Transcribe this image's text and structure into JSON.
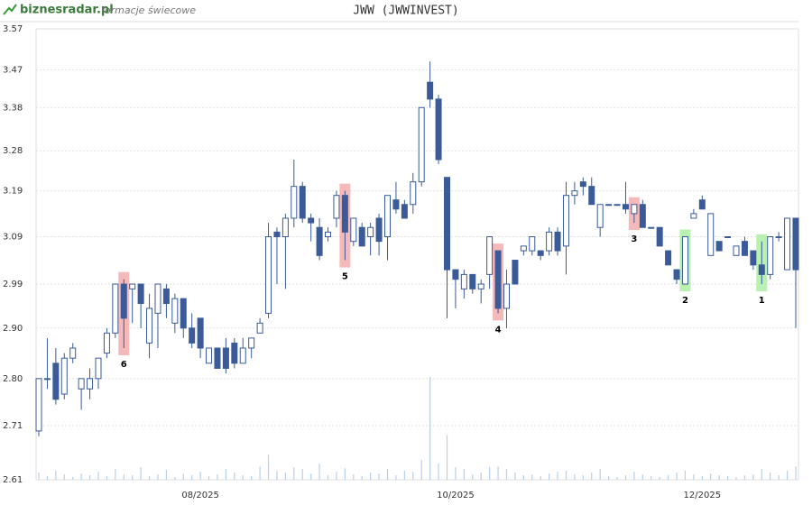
{
  "chart_data": {
    "type": "candlestick",
    "brand": "biznesradar.pl",
    "subtitle": "formacje świecowe",
    "title": "JWW (JWWINVEST)",
    "log": true,
    "grid": true,
    "up_color": "#ffffff",
    "down_color": "#3a5a98",
    "volume_color": "#b8cfe8",
    "ylim": [
      2.61,
      3.57
    ],
    "yticks": [
      {
        "value": 2.61,
        "label": "2.61"
      },
      {
        "value": 2.71,
        "label": "2.71"
      },
      {
        "value": 2.8,
        "label": "2.80"
      },
      {
        "value": 2.9,
        "label": "2.90"
      },
      2.99,
      3.09,
      3.19,
      3.28,
      3.38,
      3.47,
      3.57
    ],
    "categories": [
      null,
      null,
      null,
      null,
      null,
      null,
      null,
      null,
      null,
      null,
      null,
      null,
      null,
      null,
      null,
      null,
      null,
      null,
      null,
      "08/2025",
      null,
      null,
      null,
      null,
      null,
      null,
      null,
      null,
      null,
      null,
      null,
      null,
      null,
      null,
      null,
      null,
      null,
      null,
      null,
      null,
      null,
      null,
      null,
      null,
      null,
      null,
      null,
      null,
      null,
      "10/2025",
      null,
      null,
      null,
      null,
      null,
      null,
      null,
      null,
      null,
      null,
      null,
      null,
      null,
      null,
      null,
      null,
      null,
      null,
      null,
      null,
      null,
      null,
      null,
      null,
      null,
      null,
      null,
      null,
      "12/2025",
      null,
      null,
      null,
      null,
      null,
      null,
      null,
      null,
      null,
      null,
      null
    ],
    "ohlc": [
      [
        2.7,
        2.8,
        2.69,
        2.8
      ],
      [
        2.8,
        2.88,
        2.78,
        2.8
      ],
      [
        2.83,
        2.86,
        2.75,
        2.76
      ],
      [
        2.77,
        2.85,
        2.76,
        2.84
      ],
      [
        2.84,
        2.87,
        2.83,
        2.86
      ],
      [
        2.78,
        2.8,
        2.74,
        2.8
      ],
      [
        2.78,
        2.82,
        2.76,
        2.8
      ],
      [
        2.8,
        2.84,
        2.78,
        2.84
      ],
      [
        2.85,
        2.9,
        2.84,
        2.89
      ],
      [
        2.89,
        2.99,
        2.88,
        2.99
      ],
      [
        2.99,
        3.0,
        2.86,
        2.92
      ],
      [
        2.98,
        2.99,
        2.91,
        2.99
      ],
      [
        2.99,
        2.99,
        2.9,
        2.95
      ],
      [
        2.87,
        2.97,
        2.84,
        2.94
      ],
      [
        2.93,
        2.99,
        2.86,
        2.99
      ],
      [
        2.98,
        2.99,
        2.92,
        2.95
      ],
      [
        2.91,
        2.97,
        2.89,
        2.96
      ],
      [
        2.96,
        2.96,
        2.88,
        2.9
      ],
      [
        2.9,
        2.93,
        2.86,
        2.87
      ],
      [
        2.92,
        2.92,
        2.84,
        2.86
      ],
      [
        2.83,
        2.86,
        2.83,
        2.86
      ],
      [
        2.86,
        2.86,
        2.82,
        2.82
      ],
      [
        2.86,
        2.88,
        2.81,
        2.82
      ],
      [
        2.87,
        2.88,
        2.82,
        2.83
      ],
      [
        2.83,
        2.88,
        2.83,
        2.86
      ],
      [
        2.86,
        2.88,
        2.84,
        2.88
      ],
      [
        2.89,
        2.92,
        2.89,
        2.91
      ],
      [
        2.93,
        3.12,
        2.92,
        3.09
      ],
      [
        3.1,
        3.11,
        2.99,
        3.09
      ],
      [
        3.09,
        3.14,
        2.98,
        3.13
      ],
      [
        3.13,
        3.26,
        3.11,
        3.2
      ],
      [
        3.2,
        3.21,
        3.12,
        3.13
      ],
      [
        3.13,
        3.14,
        3.08,
        3.12
      ],
      [
        3.11,
        3.13,
        3.04,
        3.05
      ],
      [
        3.09,
        3.11,
        3.08,
        3.1
      ],
      [
        3.13,
        3.19,
        3.11,
        3.18
      ],
      [
        3.18,
        3.19,
        3.04,
        3.1
      ],
      [
        3.08,
        3.13,
        3.07,
        3.13
      ],
      [
        3.11,
        3.12,
        3.07,
        3.07
      ],
      [
        3.09,
        3.12,
        3.05,
        3.11
      ],
      [
        3.13,
        3.14,
        3.05,
        3.08
      ],
      [
        3.09,
        3.18,
        3.04,
        3.18
      ],
      [
        3.17,
        3.21,
        3.14,
        3.15
      ],
      [
        3.16,
        3.17,
        3.13,
        3.13
      ],
      [
        3.16,
        3.23,
        3.14,
        3.21
      ],
      [
        3.21,
        3.38,
        3.2,
        3.38
      ],
      [
        3.44,
        3.49,
        3.38,
        3.4
      ],
      [
        3.4,
        3.41,
        3.25,
        3.26
      ],
      [
        3.22,
        3.22,
        2.92,
        3.02
      ],
      [
        3.02,
        3.02,
        2.94,
        3.0
      ],
      [
        2.98,
        3.02,
        2.96,
        3.01
      ],
      [
        3.01,
        3.01,
        2.97,
        2.98
      ],
      [
        2.98,
        3.0,
        2.95,
        2.99
      ],
      [
        3.01,
        3.09,
        2.98,
        3.09
      ],
      [
        3.06,
        3.06,
        2.93,
        2.94
      ],
      [
        2.94,
        3.02,
        2.9,
        2.99
      ],
      [
        3.04,
        3.04,
        2.99,
        2.99
      ],
      [
        3.06,
        3.07,
        3.05,
        3.07
      ],
      [
        3.06,
        3.09,
        3.05,
        3.09
      ],
      [
        3.06,
        3.06,
        3.04,
        3.05
      ],
      [
        3.06,
        3.11,
        3.05,
        3.1
      ],
      [
        3.1,
        3.11,
        3.05,
        3.06
      ],
      [
        3.07,
        3.21,
        3.01,
        3.18
      ],
      [
        3.18,
        3.21,
        3.16,
        3.19
      ],
      [
        3.21,
        3.22,
        3.18,
        3.2
      ],
      [
        3.2,
        3.22,
        3.16,
        3.16
      ],
      [
        3.11,
        3.16,
        3.09,
        3.16
      ],
      [
        3.16,
        3.16,
        3.16,
        3.16
      ],
      [
        3.16,
        3.16,
        3.16,
        3.16
      ],
      [
        3.16,
        3.21,
        3.14,
        3.15
      ],
      [
        3.14,
        3.16,
        3.12,
        3.16
      ],
      [
        3.16,
        3.17,
        3.11,
        3.11
      ],
      [
        3.11,
        3.11,
        3.11,
        3.11
      ],
      [
        3.11,
        3.11,
        3.07,
        3.07
      ],
      [
        3.06,
        3.06,
        3.03,
        3.03
      ],
      [
        3.02,
        3.02,
        2.99,
        3.0
      ],
      [
        2.99,
        3.09,
        2.99,
        3.09
      ],
      [
        3.13,
        3.15,
        3.13,
        3.14
      ],
      [
        3.17,
        3.18,
        3.15,
        3.15
      ],
      [
        3.05,
        3.14,
        3.05,
        3.14
      ],
      [
        3.08,
        3.08,
        3.06,
        3.06
      ],
      [
        3.09,
        3.09,
        3.09,
        3.09
      ],
      [
        3.05,
        3.07,
        3.05,
        3.07
      ],
      [
        3.08,
        3.09,
        3.05,
        3.05
      ],
      [
        3.06,
        3.06,
        3.02,
        3.03
      ],
      [
        3.03,
        3.08,
        2.99,
        3.01
      ],
      [
        3.01,
        3.09,
        3.0,
        3.09
      ],
      [
        3.09,
        3.1,
        3.08,
        3.09
      ],
      [
        3.02,
        3.13,
        3.02,
        3.13
      ],
      [
        3.13,
        3.13,
        2.9,
        3.02
      ]
    ],
    "volume": [
      8,
      4,
      10,
      6,
      3,
      7,
      5,
      9,
      4,
      12,
      6,
      5,
      14,
      4,
      6,
      11,
      3,
      7,
      5,
      9,
      4,
      6,
      12,
      8,
      5,
      4,
      15,
      28,
      10,
      8,
      14,
      12,
      7,
      18,
      5,
      9,
      13,
      6,
      4,
      8,
      7,
      12,
      5,
      10,
      9,
      22,
      115,
      18,
      50,
      14,
      12,
      6,
      8,
      14,
      15,
      12,
      8,
      5,
      6,
      4,
      7,
      9,
      10,
      6,
      5,
      8,
      12,
      4,
      3,
      5,
      9,
      6,
      4,
      3,
      5,
      8,
      10,
      6,
      4,
      7,
      5,
      4,
      3,
      5,
      6,
      12,
      8,
      5,
      10,
      15
    ],
    "patterns": [
      {
        "label": "6",
        "candle": 10,
        "color": "#f4a7a7"
      },
      {
        "label": "5",
        "candle": 36,
        "color": "#f4a7a7"
      },
      {
        "label": "4",
        "candle": 54,
        "color": "#f4a7a7"
      },
      {
        "label": "3",
        "candle": 70,
        "color": "#f4a7a7"
      },
      {
        "label": "2",
        "candle": 76,
        "color": "#a8ee9c"
      },
      {
        "label": "1",
        "candle": 85,
        "color": "#a8ee9c"
      }
    ]
  }
}
